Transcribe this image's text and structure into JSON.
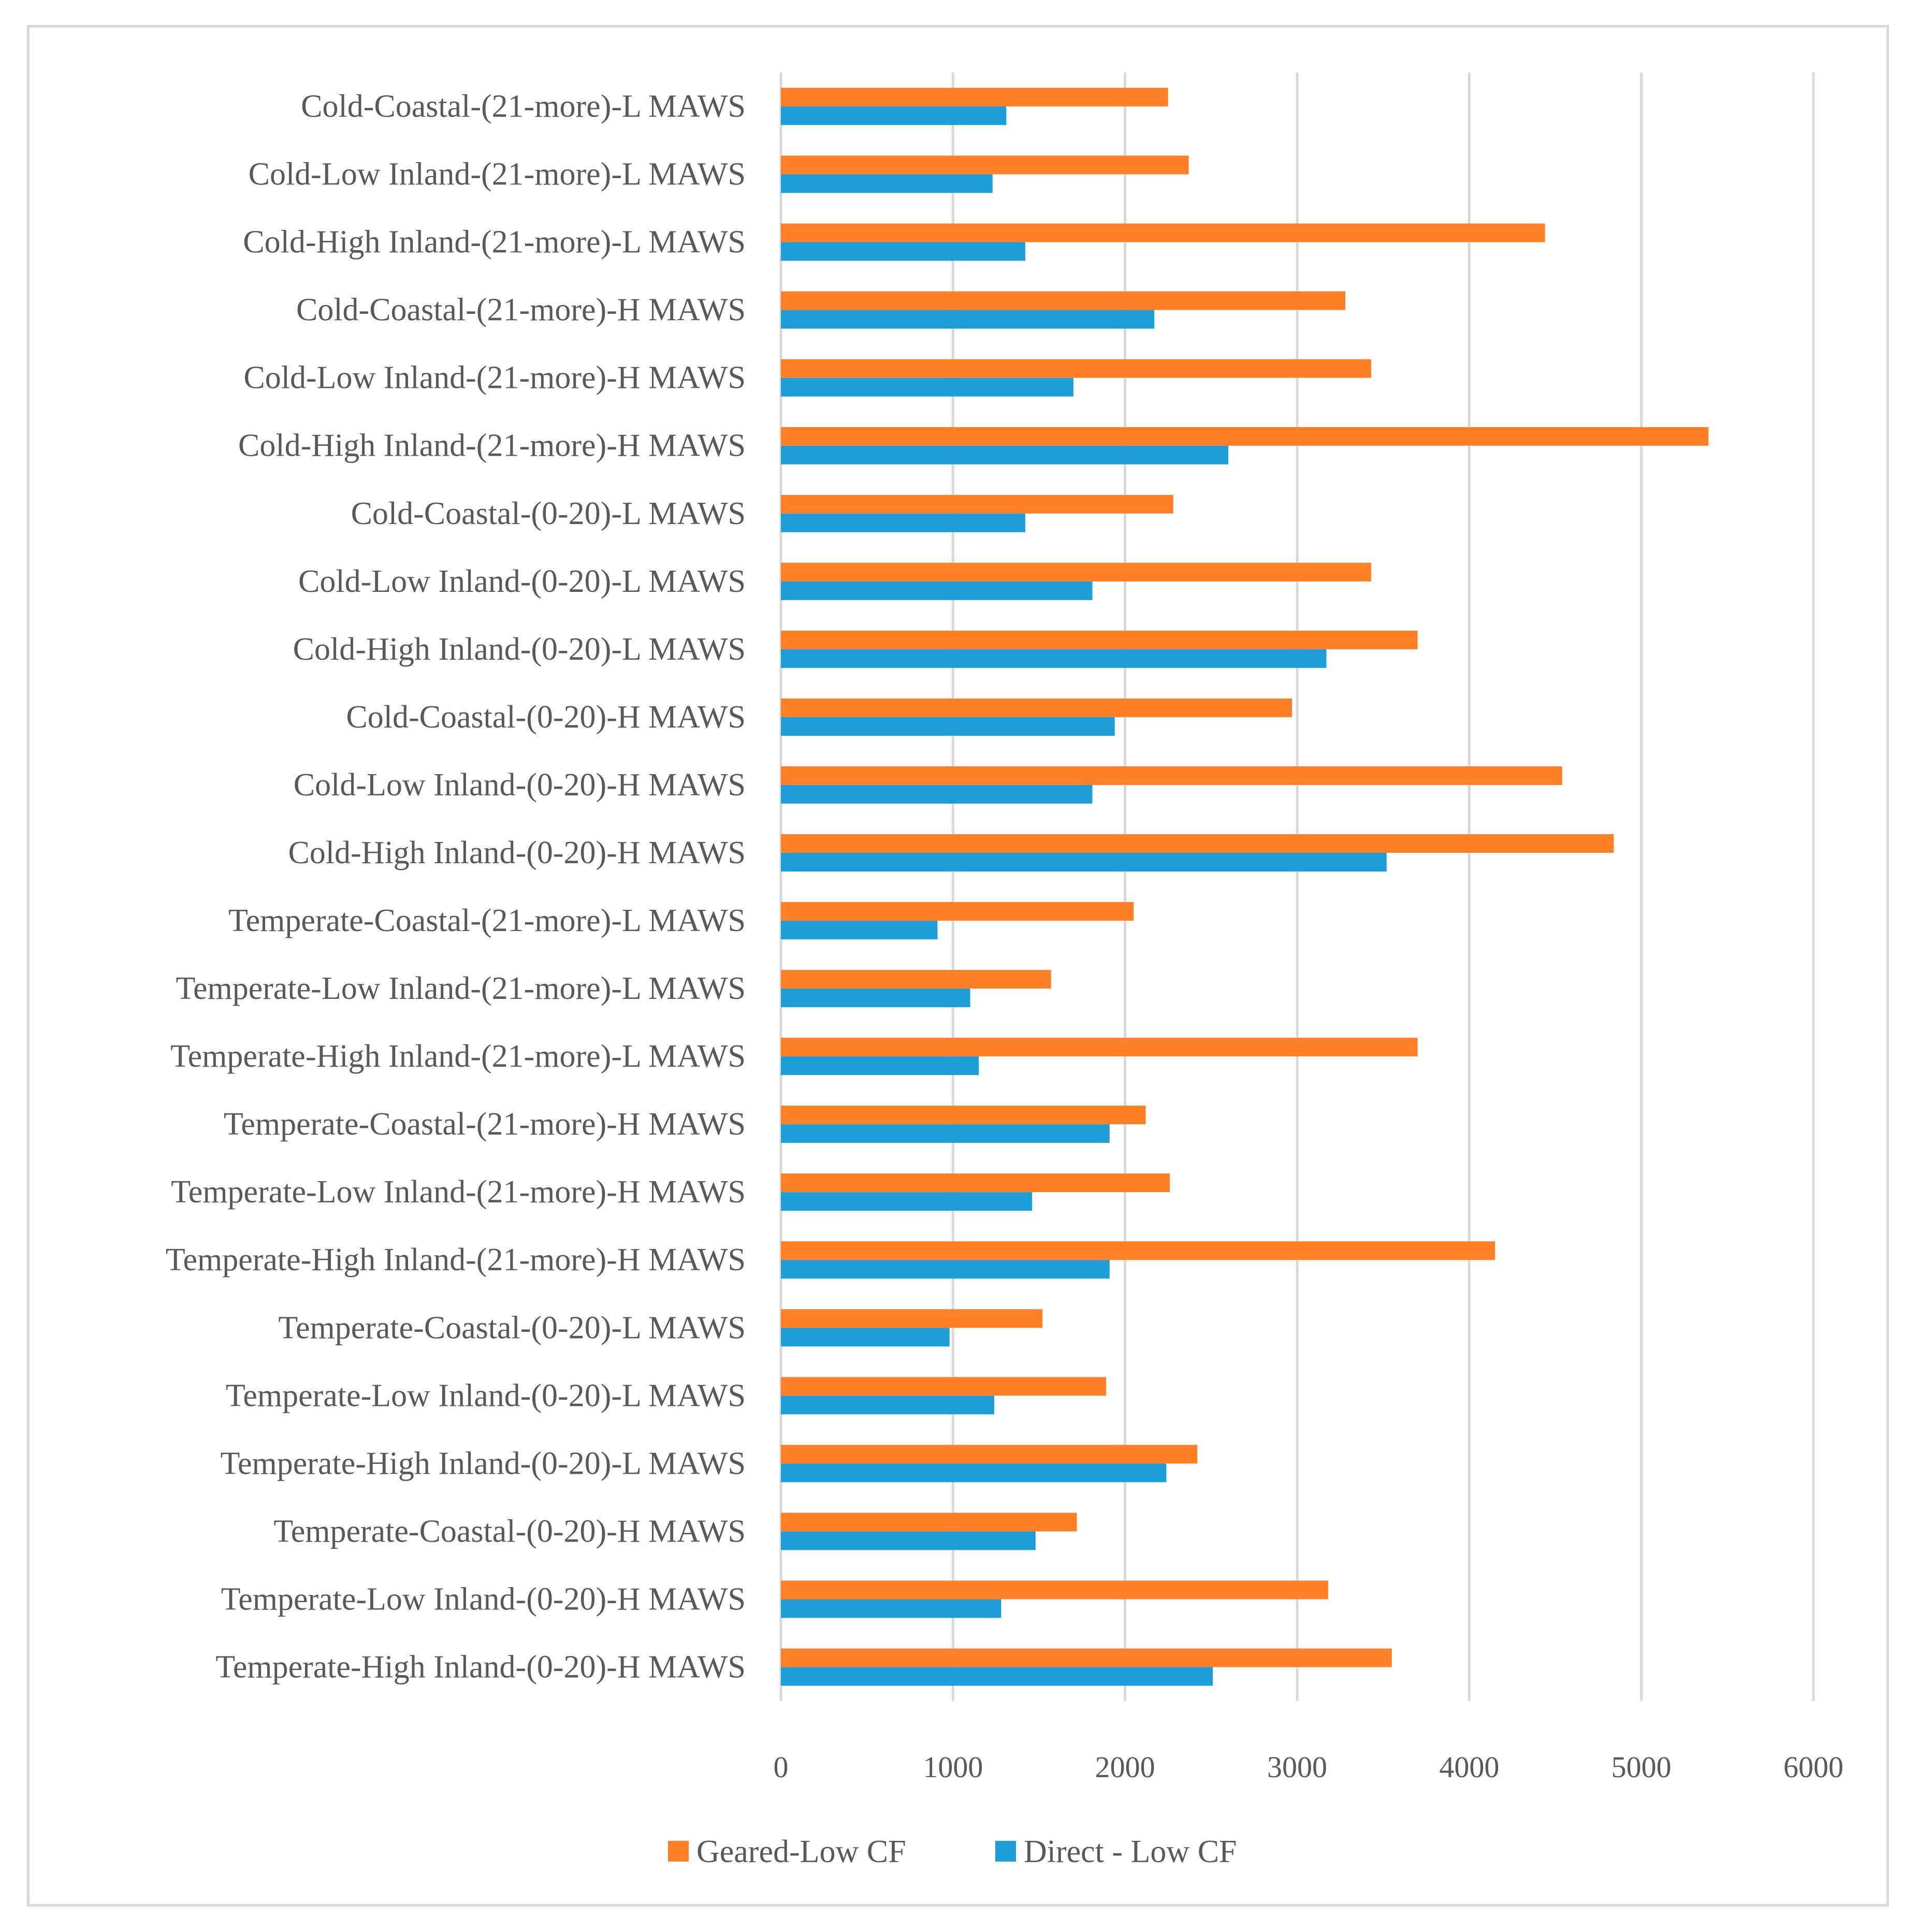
{
  "chart_data": {
    "type": "bar",
    "orientation": "horizontal",
    "title": "",
    "xlabel": "",
    "ylabel": "",
    "xlim": [
      0,
      6000
    ],
    "xticks": [
      0,
      1000,
      2000,
      3000,
      4000,
      5000,
      6000
    ],
    "grid": true,
    "legend_position": "bottom",
    "categories": [
      "Cold-Coastal-(21-more)-L MAWS",
      "Cold-Low Inland-(21-more)-L MAWS",
      "Cold-High Inland-(21-more)-L MAWS",
      "Cold-Coastal-(21-more)-H MAWS",
      "Cold-Low Inland-(21-more)-H MAWS",
      "Cold-High Inland-(21-more)-H MAWS",
      "Cold-Coastal-(0-20)-L MAWS",
      "Cold-Low Inland-(0-20)-L MAWS",
      "Cold-High Inland-(0-20)-L MAWS",
      "Cold-Coastal-(0-20)-H MAWS",
      "Cold-Low Inland-(0-20)-H MAWS",
      "Cold-High Inland-(0-20)-H MAWS",
      "Temperate-Coastal-(21-more)-L MAWS",
      "Temperate-Low Inland-(21-more)-L MAWS",
      "Temperate-High Inland-(21-more)-L MAWS",
      "Temperate-Coastal-(21-more)-H MAWS",
      "Temperate-Low Inland-(21-more)-H MAWS",
      "Temperate-High Inland-(21-more)-H MAWS",
      "Temperate-Coastal-(0-20)-L MAWS",
      "Temperate-Low Inland-(0-20)-L MAWS",
      "Temperate-High Inland-(0-20)-L MAWS",
      "Temperate-Coastal-(0-20)-H MAWS",
      "Temperate-Low Inland-(0-20)-H MAWS",
      "Temperate-High Inland-(0-20)-H MAWS"
    ],
    "series": [
      {
        "name": "Geared-Low CF",
        "color": "#ff7f27",
        "values": [
          2250,
          2370,
          4440,
          3280,
          3430,
          5390,
          2280,
          3430,
          3700,
          2970,
          4540,
          4840,
          2050,
          1570,
          3700,
          2120,
          2260,
          4150,
          1520,
          1890,
          2420,
          1720,
          3180,
          3550
        ]
      },
      {
        "name": "Direct - Low CF",
        "color": "#1e9ed8",
        "values": [
          1310,
          1230,
          1420,
          2170,
          1700,
          2600,
          1420,
          1810,
          3170,
          1940,
          1810,
          3520,
          910,
          1100,
          1150,
          1910,
          1460,
          1910,
          980,
          1240,
          2240,
          1480,
          1280,
          2510
        ]
      }
    ]
  }
}
